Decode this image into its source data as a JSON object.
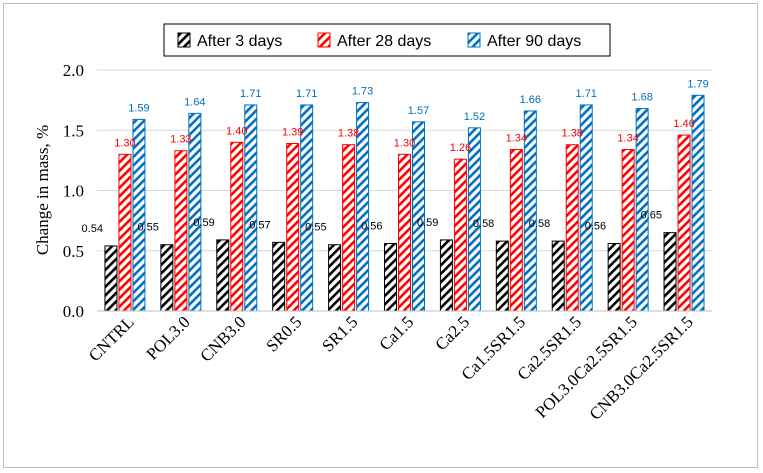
{
  "chart_data": {
    "type": "bar",
    "title": "",
    "xlabel": "",
    "ylabel": "Change in mass, %",
    "ylim": [
      0,
      2.0
    ],
    "yticks": [
      "0.0",
      "0.5",
      "1.0",
      "1.5",
      "2.0"
    ],
    "grid": "horizontal",
    "legend_position": "top",
    "categories": [
      "CNTRL",
      "POL3.0",
      "CNB3.0",
      "SR0.5",
      "SR1.5",
      "Ca1.5",
      "Ca2.5",
      "Ca1.5SR1.5",
      "Ca2.5SR1.5",
      "POL3.0Ca2.5SR1.5",
      "CNB3.0Ca2.5SR1.5"
    ],
    "series": [
      {
        "name": "After 3 days",
        "color": "#000000",
        "label_color": "#000000",
        "values": [
          0.54,
          0.55,
          0.59,
          0.57,
          0.55,
          0.56,
          0.59,
          0.58,
          0.58,
          0.56,
          0.65
        ],
        "labels": [
          "0.54",
          "0.55",
          "0.59",
          "0.57",
          "0.55",
          "0.56",
          "0.59",
          "0.58",
          "0.58",
          "0.56",
          "0.65"
        ]
      },
      {
        "name": "After 28 days",
        "color": "#ff0000",
        "label_color": "#ff0000",
        "values": [
          1.3,
          1.33,
          1.4,
          1.39,
          1.38,
          1.3,
          1.26,
          1.34,
          1.38,
          1.34,
          1.46
        ],
        "labels": [
          "1.30",
          "1.33",
          "1.40",
          "1.39",
          "1.38",
          "1.30",
          "1.26",
          "1.34",
          "1.38",
          "1.34",
          "1.46"
        ]
      },
      {
        "name": "After 90 days",
        "color": "#0070c0",
        "label_color": "#0070c0",
        "values": [
          1.59,
          1.64,
          1.71,
          1.71,
          1.73,
          1.57,
          1.52,
          1.66,
          1.71,
          1.68,
          1.79
        ],
        "labels": [
          "1.59",
          "1.64",
          "1.71",
          "1.71",
          "1.73",
          "1.57",
          "1.52",
          "1.66",
          "1.71",
          "1.68",
          "1.79"
        ]
      }
    ]
  }
}
